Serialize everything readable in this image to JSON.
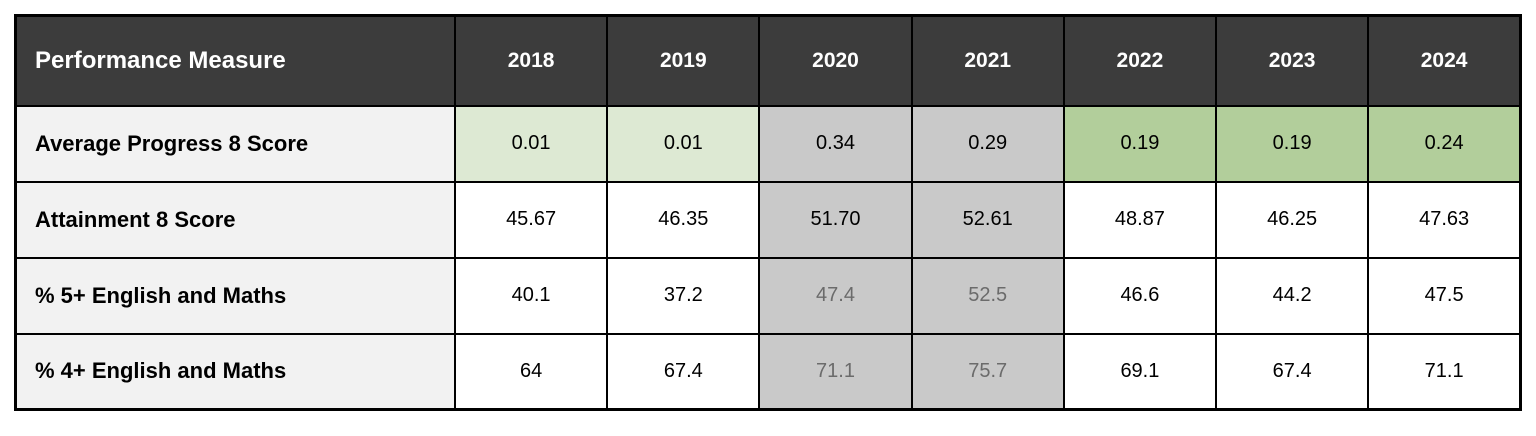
{
  "chart_data": {
    "type": "table",
    "header_label": "Performance Measure",
    "columns": [
      "2018",
      "2019",
      "2020",
      "2021",
      "2022",
      "2023",
      "2024"
    ],
    "rows": [
      {
        "label": "Average Progress 8 Score",
        "values": [
          "0.01",
          "0.01",
          "0.34",
          "0.29",
          "0.19",
          "0.19",
          "0.24"
        ],
        "cell_styles": [
          "green-light",
          "green-light",
          "gray",
          "gray",
          "green",
          "green",
          "green"
        ]
      },
      {
        "label": "Attainment 8 Score",
        "values": [
          "45.67",
          "46.35",
          "51.70",
          "52.61",
          "48.87",
          "46.25",
          "47.63"
        ],
        "cell_styles": [
          "white",
          "white",
          "gray",
          "gray",
          "white",
          "white",
          "white"
        ]
      },
      {
        "label": "% 5+ English and Maths",
        "values": [
          "40.1",
          "37.2",
          "47.4",
          "52.5",
          "46.6",
          "44.2",
          "47.5"
        ],
        "cell_styles": [
          "white",
          "white",
          "gray-muted",
          "gray-muted",
          "white",
          "white",
          "white"
        ]
      },
      {
        "label": "% 4+ English and Maths",
        "values": [
          "64",
          "67.4",
          "71.1",
          "75.7",
          "69.1",
          "67.4",
          "71.1"
        ],
        "cell_styles": [
          "white",
          "white",
          "gray-muted",
          "gray-muted",
          "white",
          "white",
          "white"
        ]
      }
    ],
    "layout": {
      "grid": "all-borders",
      "highlighted_columns_gray": [
        "2020",
        "2021"
      ]
    }
  },
  "colors": {
    "header_bg": "#3c3c3c",
    "header_text": "#ffffff",
    "label_column_bg": "#f2f2f2",
    "green_light": "#dde9d3",
    "green": "#b2ce9b",
    "gray_cell": "#c9c9c9",
    "muted_text": "#6b6b6b",
    "border": "#000000",
    "page_bg": "#ffffff"
  }
}
